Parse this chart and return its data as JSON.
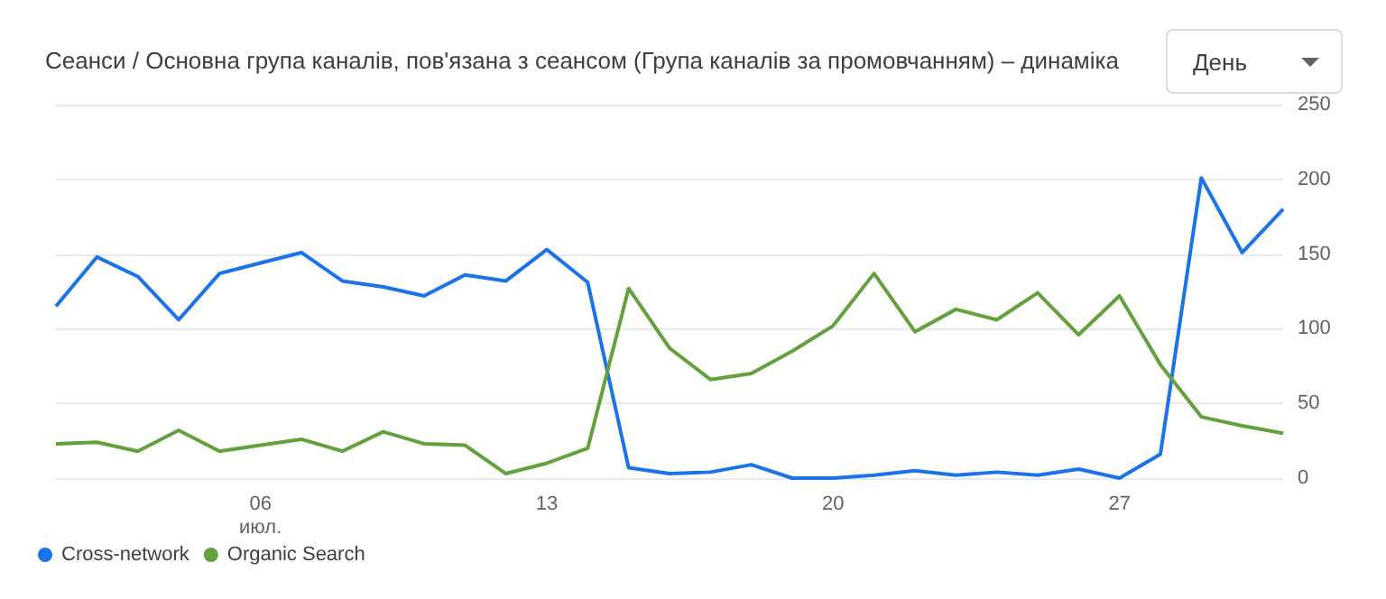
{
  "chart_data": {
    "type": "line",
    "title": "Сеанси / Основна група каналів, пов'язана з сеансом (Група каналів за промовчанням) – динаміка",
    "annotations": [
      "День"
    ],
    "categories": [
      null,
      null,
      null,
      null,
      null,
      "06\nиюл.",
      null,
      null,
      null,
      null,
      null,
      null,
      "13",
      null,
      null,
      null,
      null,
      null,
      null,
      "20",
      null,
      null,
      null,
      null,
      null,
      null,
      "27",
      null,
      null,
      null,
      null
    ],
    "series": [
      {
        "name": "Cross-network",
        "color": "#1a73e8",
        "values": [
          115,
          148,
          135,
          106,
          137,
          144,
          151,
          132,
          128,
          122,
          136,
          132,
          153,
          131,
          7,
          3,
          4,
          9,
          0,
          0,
          2,
          5,
          2,
          4,
          2,
          6,
          0,
          16,
          201,
          151,
          180
        ]
      },
      {
        "name": "Organic Search",
        "color": "#62a13b",
        "values": [
          23,
          24,
          18,
          32,
          18,
          22,
          26,
          18,
          31,
          23,
          22,
          3,
          10,
          20,
          127,
          87,
          66,
          70,
          85,
          102,
          137,
          98,
          113,
          106,
          124,
          96,
          122,
          76,
          41,
          35,
          30
        ]
      }
    ],
    "ylim": [
      0,
      250
    ],
    "yticks": [
      0,
      50,
      100,
      150,
      200,
      250
    ],
    "grid": "y",
    "legend": "bottom left"
  }
}
